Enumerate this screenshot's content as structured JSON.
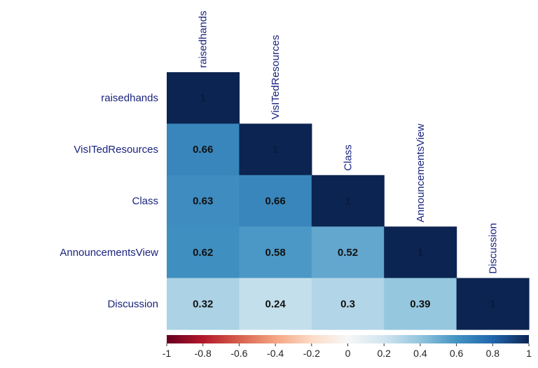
{
  "chart_data": {
    "type": "heatmap",
    "title": "",
    "variables": [
      "raisedhands",
      "VisITedResources",
      "Class",
      "AnnouncementsView",
      "Discussion"
    ],
    "matrix": [
      [
        1,
        null,
        null,
        null,
        null
      ],
      [
        0.66,
        1,
        null,
        null,
        null
      ],
      [
        0.63,
        0.66,
        1,
        null,
        null
      ],
      [
        0.62,
        0.58,
        0.52,
        1,
        null
      ],
      [
        0.32,
        0.24,
        0.3,
        0.39,
        1
      ]
    ],
    "cell_labels": [
      [
        "1",
        "",
        "",
        "",
        ""
      ],
      [
        "0.66",
        "1",
        "",
        "",
        ""
      ],
      [
        "0.63",
        "0.66",
        "1",
        "",
        ""
      ],
      [
        "0.62",
        "0.58",
        "0.52",
        "1",
        ""
      ],
      [
        "0.32",
        "0.24",
        "0.3",
        "0.39",
        "1"
      ]
    ],
    "colorbar": {
      "range": [
        -1,
        1
      ],
      "ticks": [
        -1,
        -0.8,
        -0.6,
        -0.4,
        -0.2,
        0,
        0.2,
        0.4,
        0.6,
        0.8,
        1
      ],
      "tick_labels": [
        "-1",
        "-0.8",
        "-0.6",
        "-0.4",
        "-0.2",
        "0",
        "0.2",
        "0.4",
        "0.6",
        "0.8",
        "1"
      ],
      "placement": "bottom"
    },
    "layout": "lower-triangle",
    "colors": {
      "negative": "#67001f",
      "zero": "#f7f7f7",
      "positive": "#0c2451",
      "label_text": "#1a237e",
      "value_text": "#111111"
    }
  }
}
